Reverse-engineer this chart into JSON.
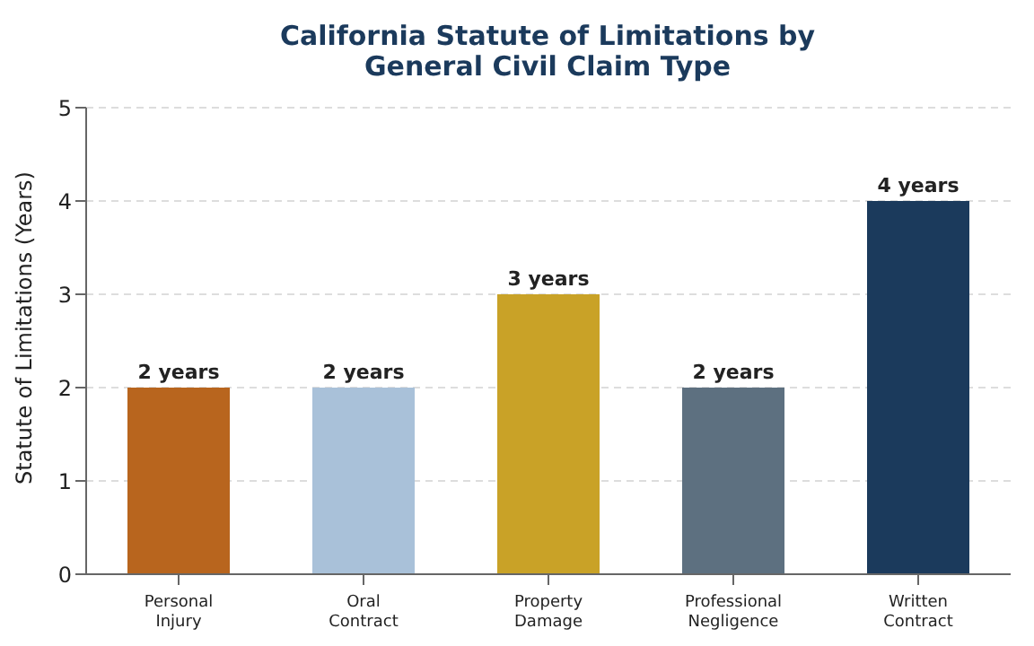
{
  "chart_data": {
    "type": "bar",
    "title": "California Statute of Limitations by General Civil Claim Type",
    "ylabel": "Statute of Limitations (Years)",
    "categories": [
      "Personal Injury",
      "Oral Contract",
      "Property Damage",
      "Professional Negligence",
      "Written Contract"
    ],
    "values": [
      2,
      2,
      3,
      2,
      4
    ],
    "colors": [
      "#b8651e",
      "#a9c1d9",
      "#c9a227",
      "#5d7080",
      "#1b3a5c"
    ],
    "value_labels": [
      "2 years",
      "2 years",
      "3 years",
      "2 years",
      "4 years"
    ],
    "ylim": [
      0,
      5
    ],
    "yticks": [
      0,
      1,
      2,
      3,
      4,
      5
    ],
    "grid": "y"
  }
}
